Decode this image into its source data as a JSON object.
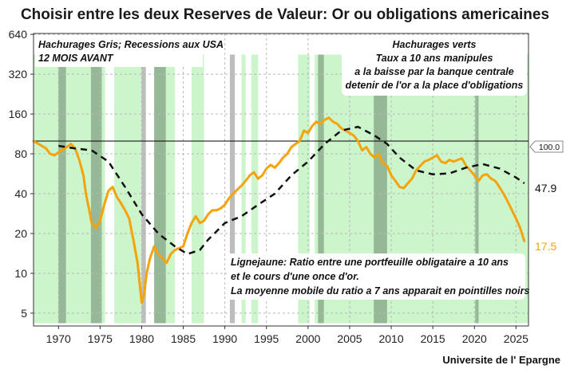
{
  "chart_data": {
    "type": "line",
    "title": "Choisir entre les deux Reserves de Valeur:  Or ou obligations americaines",
    "source": "Universite de l' Epargne",
    "y_scale": "log",
    "ylim": [
      4,
      650
    ],
    "xlim": [
      1967,
      2026.5
    ],
    "y_ticks": [
      640,
      320,
      160,
      80,
      40,
      20,
      10,
      5
    ],
    "x_ticks": [
      1970,
      1975,
      1980,
      1985,
      1990,
      1995,
      2000,
      2005,
      2010,
      2015,
      2020,
      2025
    ],
    "colors": {
      "ratio": "#f5a30a",
      "moving_average": "#111111",
      "green_shade": "#ccf5cc",
      "grey_shade": "#bdbdbd",
      "overlap_shade": "#96b896",
      "reference_line": "#000000"
    },
    "reference_line": {
      "value": 100,
      "label": "100.0"
    },
    "series": [
      {
        "name": "Ratio portefeuille obligataire 10 ans / once d'or",
        "style": "solid-orange",
        "end_label": "17.5",
        "points": [
          [
            1967.0,
            100
          ],
          [
            1968.0,
            92
          ],
          [
            1968.5,
            88
          ],
          [
            1969.0,
            80
          ],
          [
            1969.5,
            78
          ],
          [
            1970.0,
            82
          ],
          [
            1970.5,
            86
          ],
          [
            1971.0,
            90
          ],
          [
            1971.5,
            95
          ],
          [
            1972.0,
            88
          ],
          [
            1972.5,
            72
          ],
          [
            1973.0,
            55
          ],
          [
            1973.3,
            40
          ],
          [
            1973.7,
            30
          ],
          [
            1974.0,
            24
          ],
          [
            1974.5,
            22
          ],
          [
            1975.0,
            25
          ],
          [
            1975.5,
            33
          ],
          [
            1976.0,
            42
          ],
          [
            1976.5,
            45
          ],
          [
            1977.0,
            38
          ],
          [
            1977.5,
            34
          ],
          [
            1978.0,
            30
          ],
          [
            1978.5,
            26
          ],
          [
            1979.0,
            18
          ],
          [
            1979.5,
            12
          ],
          [
            1980.0,
            6
          ],
          [
            1980.3,
            7
          ],
          [
            1980.6,
            10
          ],
          [
            1981.0,
            13
          ],
          [
            1981.5,
            16
          ],
          [
            1982.0,
            14
          ],
          [
            1982.5,
            13
          ],
          [
            1983.0,
            12
          ],
          [
            1983.5,
            14
          ],
          [
            1984.0,
            15
          ],
          [
            1985.0,
            16
          ],
          [
            1985.5,
            20
          ],
          [
            1986.0,
            24
          ],
          [
            1986.5,
            27
          ],
          [
            1987.0,
            24
          ],
          [
            1987.5,
            25
          ],
          [
            1988.0,
            28
          ],
          [
            1988.5,
            30
          ],
          [
            1989.0,
            30
          ],
          [
            1989.5,
            31
          ],
          [
            1990.0,
            33
          ],
          [
            1990.5,
            37
          ],
          [
            1991.0,
            40
          ],
          [
            1991.5,
            43
          ],
          [
            1992.0,
            46
          ],
          [
            1992.5,
            50
          ],
          [
            1993.0,
            55
          ],
          [
            1993.5,
            58
          ],
          [
            1994.0,
            52
          ],
          [
            1994.5,
            55
          ],
          [
            1995.0,
            62
          ],
          [
            1995.5,
            66
          ],
          [
            1996.0,
            63
          ],
          [
            1996.5,
            68
          ],
          [
            1997.0,
            75
          ],
          [
            1997.5,
            80
          ],
          [
            1998.0,
            90
          ],
          [
            1998.5,
            95
          ],
          [
            1999.0,
            100
          ],
          [
            1999.5,
            120
          ],
          [
            2000.0,
            115
          ],
          [
            2000.5,
            130
          ],
          [
            2001.0,
            140
          ],
          [
            2001.5,
            135
          ],
          [
            2002.0,
            145
          ],
          [
            2002.5,
            150
          ],
          [
            2003.0,
            140
          ],
          [
            2003.5,
            135
          ],
          [
            2004.0,
            125
          ],
          [
            2004.5,
            120
          ],
          [
            2005.0,
            115
          ],
          [
            2005.5,
            110
          ],
          [
            2006.0,
            100
          ],
          [
            2006.5,
            85
          ],
          [
            2007.0,
            90
          ],
          [
            2007.5,
            80
          ],
          [
            2008.0,
            75
          ],
          [
            2008.5,
            80
          ],
          [
            2009.0,
            68
          ],
          [
            2009.5,
            65
          ],
          [
            2010.0,
            55
          ],
          [
            2010.5,
            50
          ],
          [
            2011.0,
            45
          ],
          [
            2011.5,
            44
          ],
          [
            2012.0,
            48
          ],
          [
            2012.5,
            52
          ],
          [
            2013.0,
            60
          ],
          [
            2013.5,
            65
          ],
          [
            2014.0,
            70
          ],
          [
            2014.5,
            72
          ],
          [
            2015.0,
            75
          ],
          [
            2015.5,
            78
          ],
          [
            2016.0,
            70
          ],
          [
            2016.5,
            68
          ],
          [
            2017.0,
            72
          ],
          [
            2017.5,
            70
          ],
          [
            2018.0,
            72
          ],
          [
            2018.5,
            74
          ],
          [
            2019.0,
            65
          ],
          [
            2019.5,
            60
          ],
          [
            2020.0,
            55
          ],
          [
            2020.5,
            50
          ],
          [
            2021.0,
            55
          ],
          [
            2021.5,
            56
          ],
          [
            2022.0,
            52
          ],
          [
            2022.5,
            50
          ],
          [
            2023.0,
            45
          ],
          [
            2023.5,
            40
          ],
          [
            2024.0,
            35
          ],
          [
            2024.5,
            30
          ],
          [
            2025.0,
            26
          ],
          [
            2025.5,
            22
          ],
          [
            2026.0,
            17.5
          ]
        ]
      },
      {
        "name": "Moyenne mobile 7 ans du ratio",
        "style": "dashed-black",
        "end_label": "47.9",
        "points": [
          [
            1970.0,
            92
          ],
          [
            1972.0,
            88
          ],
          [
            1974.0,
            85
          ],
          [
            1976.0,
            70
          ],
          [
            1978.0,
            45
          ],
          [
            1980.0,
            28
          ],
          [
            1982.0,
            20
          ],
          [
            1984.0,
            16
          ],
          [
            1985.5,
            14
          ],
          [
            1987.0,
            15
          ],
          [
            1988.0,
            18
          ],
          [
            1990.0,
            24
          ],
          [
            1992.0,
            27
          ],
          [
            1994.0,
            33
          ],
          [
            1996.0,
            40
          ],
          [
            1998.0,
            55
          ],
          [
            2000.0,
            70
          ],
          [
            2002.0,
            95
          ],
          [
            2004.0,
            120
          ],
          [
            2006.0,
            128
          ],
          [
            2008.0,
            110
          ],
          [
            2009.5,
            95
          ],
          [
            2011.0,
            75
          ],
          [
            2013.0,
            60
          ],
          [
            2015.0,
            56
          ],
          [
            2017.0,
            57
          ],
          [
            2019.0,
            63
          ],
          [
            2021.0,
            67
          ],
          [
            2023.0,
            62
          ],
          [
            2025.0,
            53
          ],
          [
            2026.0,
            47.9
          ]
        ]
      }
    ],
    "green_bands": [
      [
        1967.0,
        1970.2
      ],
      [
        1970.7,
        1975.6
      ],
      [
        1976.7,
        1980.0
      ],
      [
        1982.5,
        1984.0
      ],
      [
        1986.0,
        1987.5
      ],
      [
        1992.0,
        1992.5
      ],
      [
        1993.2,
        1994.0
      ],
      [
        1998.8,
        2000.2
      ],
      [
        2000.8,
        2026.5
      ]
    ],
    "grey_bands": [
      [
        1970.0,
        1970.9
      ],
      [
        1973.9,
        1975.2
      ],
      [
        1980.0,
        1980.5
      ],
      [
        1981.5,
        1982.9
      ],
      [
        1990.6,
        1991.2
      ],
      [
        2001.2,
        2001.9
      ],
      [
        2007.9,
        2009.5
      ],
      [
        2020.1,
        2020.5
      ]
    ],
    "annotations": {
      "top_left": [
        "Hachurages Gris; Recessions aux USA",
        "12 MOIS AVANT"
      ],
      "top_right": [
        "Hachurages verts",
        "Taux a 10 ans manipules",
        "a la baisse par la banque centrale",
        "detenir de l'or a la place d'obligations"
      ],
      "bottom": [
        "Lignejaune: Ratio entre une portfeuille obligataire a 10 ans",
        "et le cours d'une once d'or.",
        "La moyenne mobile du ratio a 7 ans apparait en pointilles noirs"
      ]
    }
  }
}
